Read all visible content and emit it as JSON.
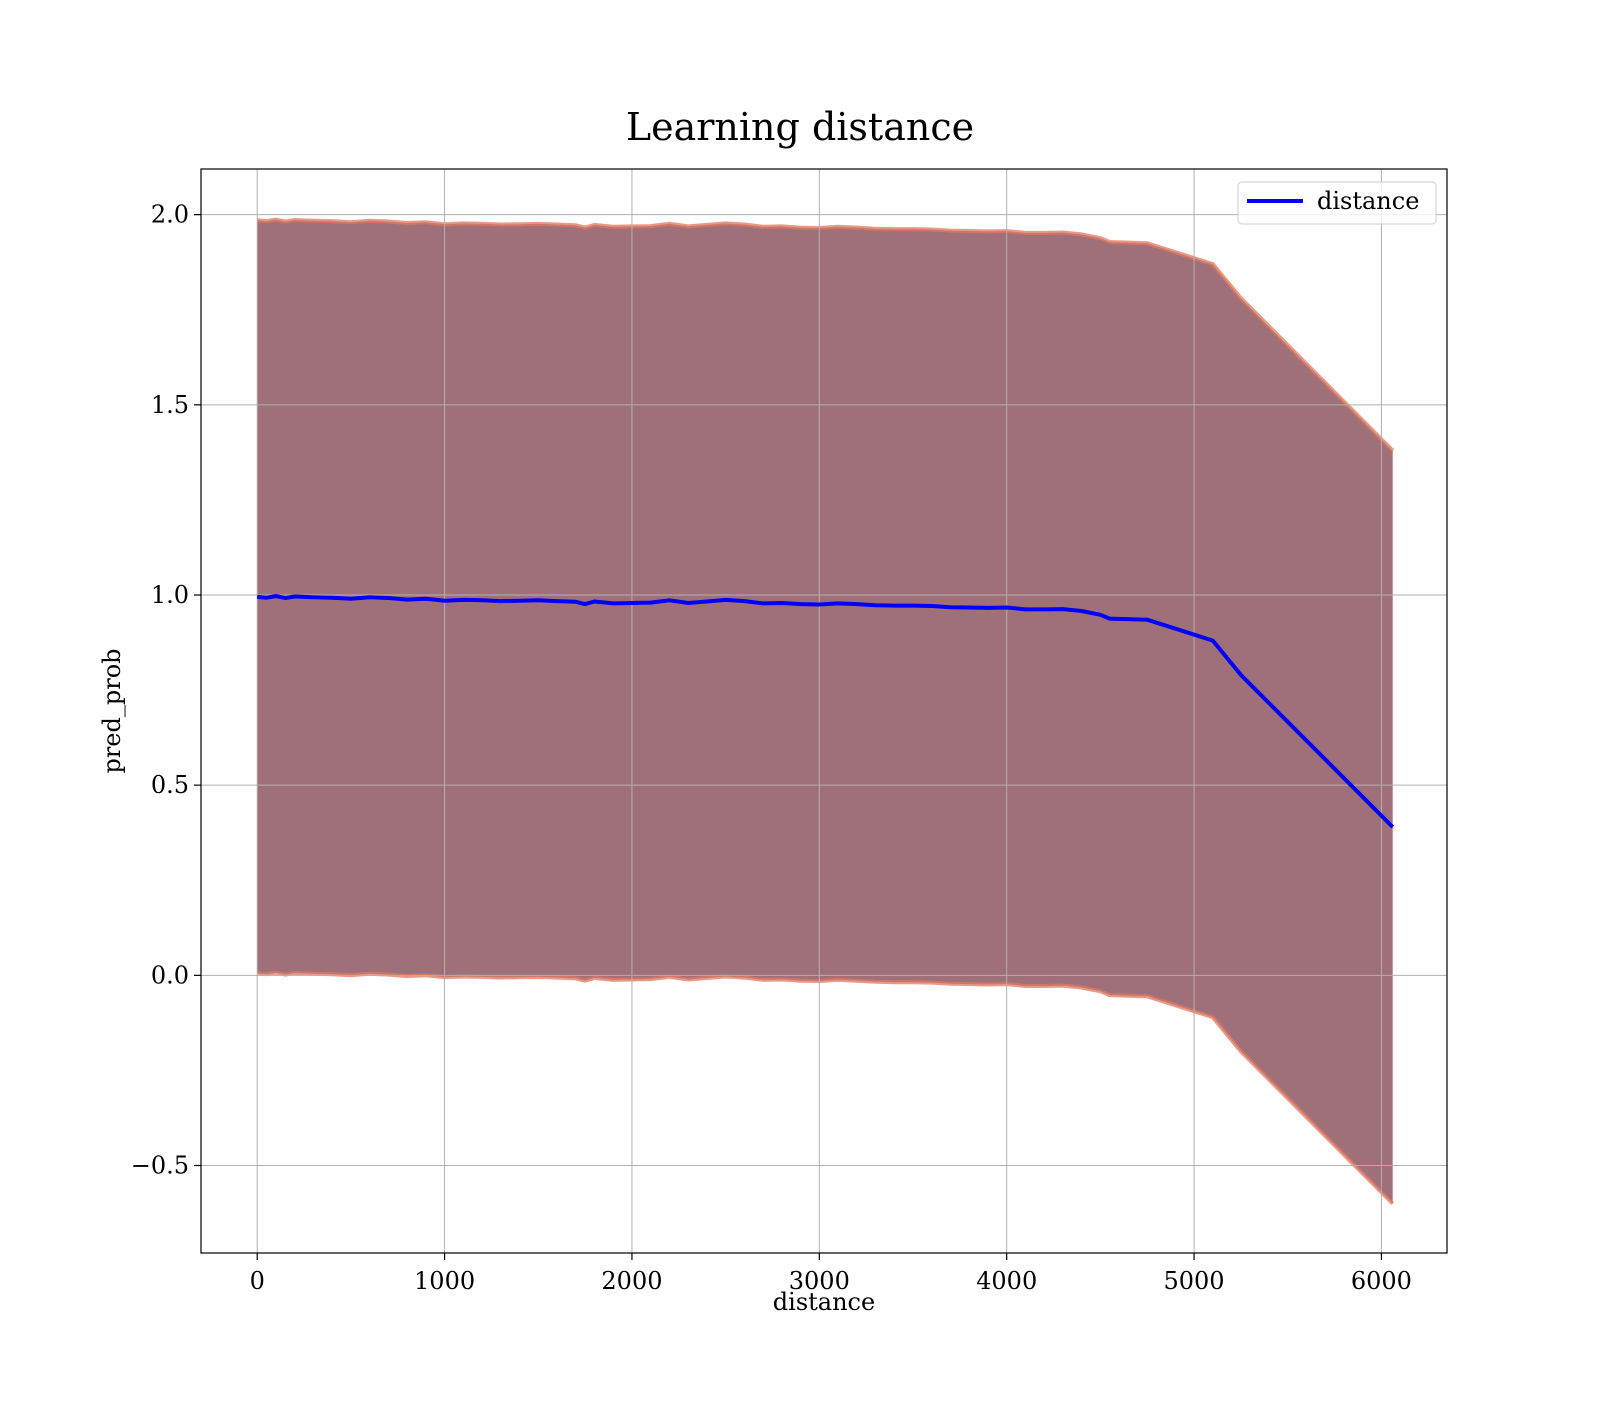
{
  "chart_data": {
    "type": "line",
    "title": "Learning distance",
    "xlabel": "distance",
    "ylabel": "pred_prob",
    "xlim": [
      -300,
      6350
    ],
    "ylim": [
      -0.73,
      2.12
    ],
    "xticks": [
      0,
      1000,
      2000,
      3000,
      4000,
      5000,
      6000
    ],
    "xtick_labels": [
      "0",
      "1000",
      "2000",
      "3000",
      "4000",
      "5000",
      "6000"
    ],
    "yticks": [
      -0.5,
      0.0,
      0.5,
      1.0,
      1.5,
      2.0
    ],
    "ytick_labels": [
      "−0.5",
      "0.0",
      "0.5",
      "1.0",
      "1.5",
      "2.0"
    ],
    "grid": true,
    "legend_position": "top-right",
    "series": [
      {
        "name": "distance",
        "color": "#0000ff",
        "x": [
          0,
          50,
          100,
          150,
          200,
          300,
          400,
          500,
          600,
          700,
          800,
          900,
          1000,
          1100,
          1200,
          1300,
          1400,
          1500,
          1600,
          1700,
          1750,
          1800,
          1900,
          2000,
          2100,
          2200,
          2300,
          2400,
          2500,
          2600,
          2700,
          2800,
          2900,
          3000,
          3100,
          3200,
          3300,
          3400,
          3500,
          3600,
          3700,
          3800,
          3900,
          4000,
          4100,
          4200,
          4300,
          4400,
          4500,
          4550,
          4750,
          5100,
          5250,
          6060
        ],
        "y": [
          0.995,
          0.993,
          0.997,
          0.992,
          0.996,
          0.994,
          0.993,
          0.99,
          0.994,
          0.992,
          0.988,
          0.99,
          0.985,
          0.987,
          0.986,
          0.984,
          0.985,
          0.986,
          0.984,
          0.982,
          0.976,
          0.983,
          0.978,
          0.979,
          0.98,
          0.986,
          0.979,
          0.983,
          0.987,
          0.984,
          0.978,
          0.979,
          0.976,
          0.975,
          0.978,
          0.976,
          0.973,
          0.972,
          0.972,
          0.971,
          0.968,
          0.967,
          0.966,
          0.967,
          0.962,
          0.962,
          0.963,
          0.958,
          0.948,
          0.938,
          0.935,
          0.88,
          0.79,
          0.39
        ]
      }
    ],
    "band": {
      "fill_color": "#a0707a",
      "edge_color": "#e07860",
      "offset": 0.99
    }
  }
}
